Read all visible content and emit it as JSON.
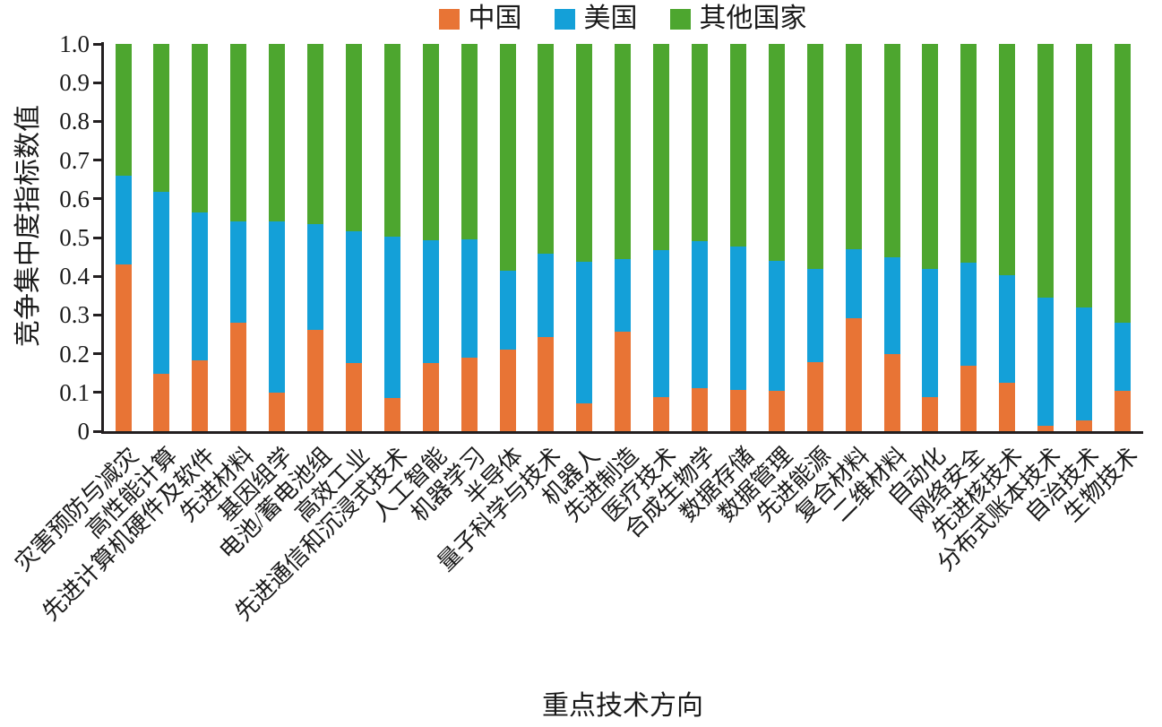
{
  "chart_data": {
    "type": "bar",
    "stacked": true,
    "title": "",
    "xlabel": "重点技术方向",
    "ylabel": "竞争集中度指标数值",
    "ylim": [
      0,
      1.0
    ],
    "ytick_values": [
      0,
      0.1,
      0.2,
      0.3,
      0.4,
      0.5,
      0.6,
      0.7,
      0.8,
      0.9,
      1.0
    ],
    "ytick_labels": [
      "0",
      "0.1",
      "0.2",
      "0.3",
      "0.4",
      "0.5",
      "0.6",
      "0.7",
      "0.8",
      "0.9",
      "1.0"
    ],
    "grid": false,
    "legend_position": "top-center",
    "categories": [
      "灾害预防与减灾",
      "高性能计算",
      "先进计算机硬件及软件",
      "先进材料",
      "基因组学",
      "电池/蓄电池组",
      "高效工业",
      "先进通信和沉浸式技术",
      "人工智能",
      "机器学习",
      "半导体",
      "量子科学与技术",
      "机器人",
      "先进制造",
      "医疗技术",
      "合成生物学",
      "数据存储",
      "数据管理",
      "先进能源",
      "复合材料",
      "二维材料",
      "自动化",
      "网络安全",
      "先进核技术",
      "分布式账本技术",
      "自治技术",
      "生物技术"
    ],
    "series": [
      {
        "name": "中国",
        "color": "#E87435",
        "values": [
          0.43,
          0.148,
          0.183,
          0.28,
          0.1,
          0.262,
          0.176,
          0.085,
          0.177,
          0.19,
          0.21,
          0.242,
          0.072,
          0.257,
          0.089,
          0.112,
          0.106,
          0.104,
          0.178,
          0.292,
          0.2,
          0.089,
          0.17,
          0.126,
          0.013,
          0.027,
          0.105
        ]
      },
      {
        "name": "美国",
        "color": "#14A0D8",
        "values": [
          0.23,
          0.469,
          0.381,
          0.261,
          0.441,
          0.273,
          0.341,
          0.418,
          0.317,
          0.306,
          0.205,
          0.217,
          0.365,
          0.188,
          0.379,
          0.378,
          0.372,
          0.336,
          0.242,
          0.178,
          0.249,
          0.331,
          0.265,
          0.277,
          0.332,
          0.293,
          0.175
        ]
      },
      {
        "name": "其他国家",
        "color": "#4DA62F",
        "values": [
          0.34,
          0.383,
          0.436,
          0.459,
          0.459,
          0.465,
          0.483,
          0.497,
          0.506,
          0.504,
          0.585,
          0.541,
          0.563,
          0.555,
          0.532,
          0.51,
          0.522,
          0.56,
          0.58,
          0.53,
          0.551,
          0.58,
          0.565,
          0.597,
          0.655,
          0.68,
          0.72
        ]
      }
    ]
  }
}
